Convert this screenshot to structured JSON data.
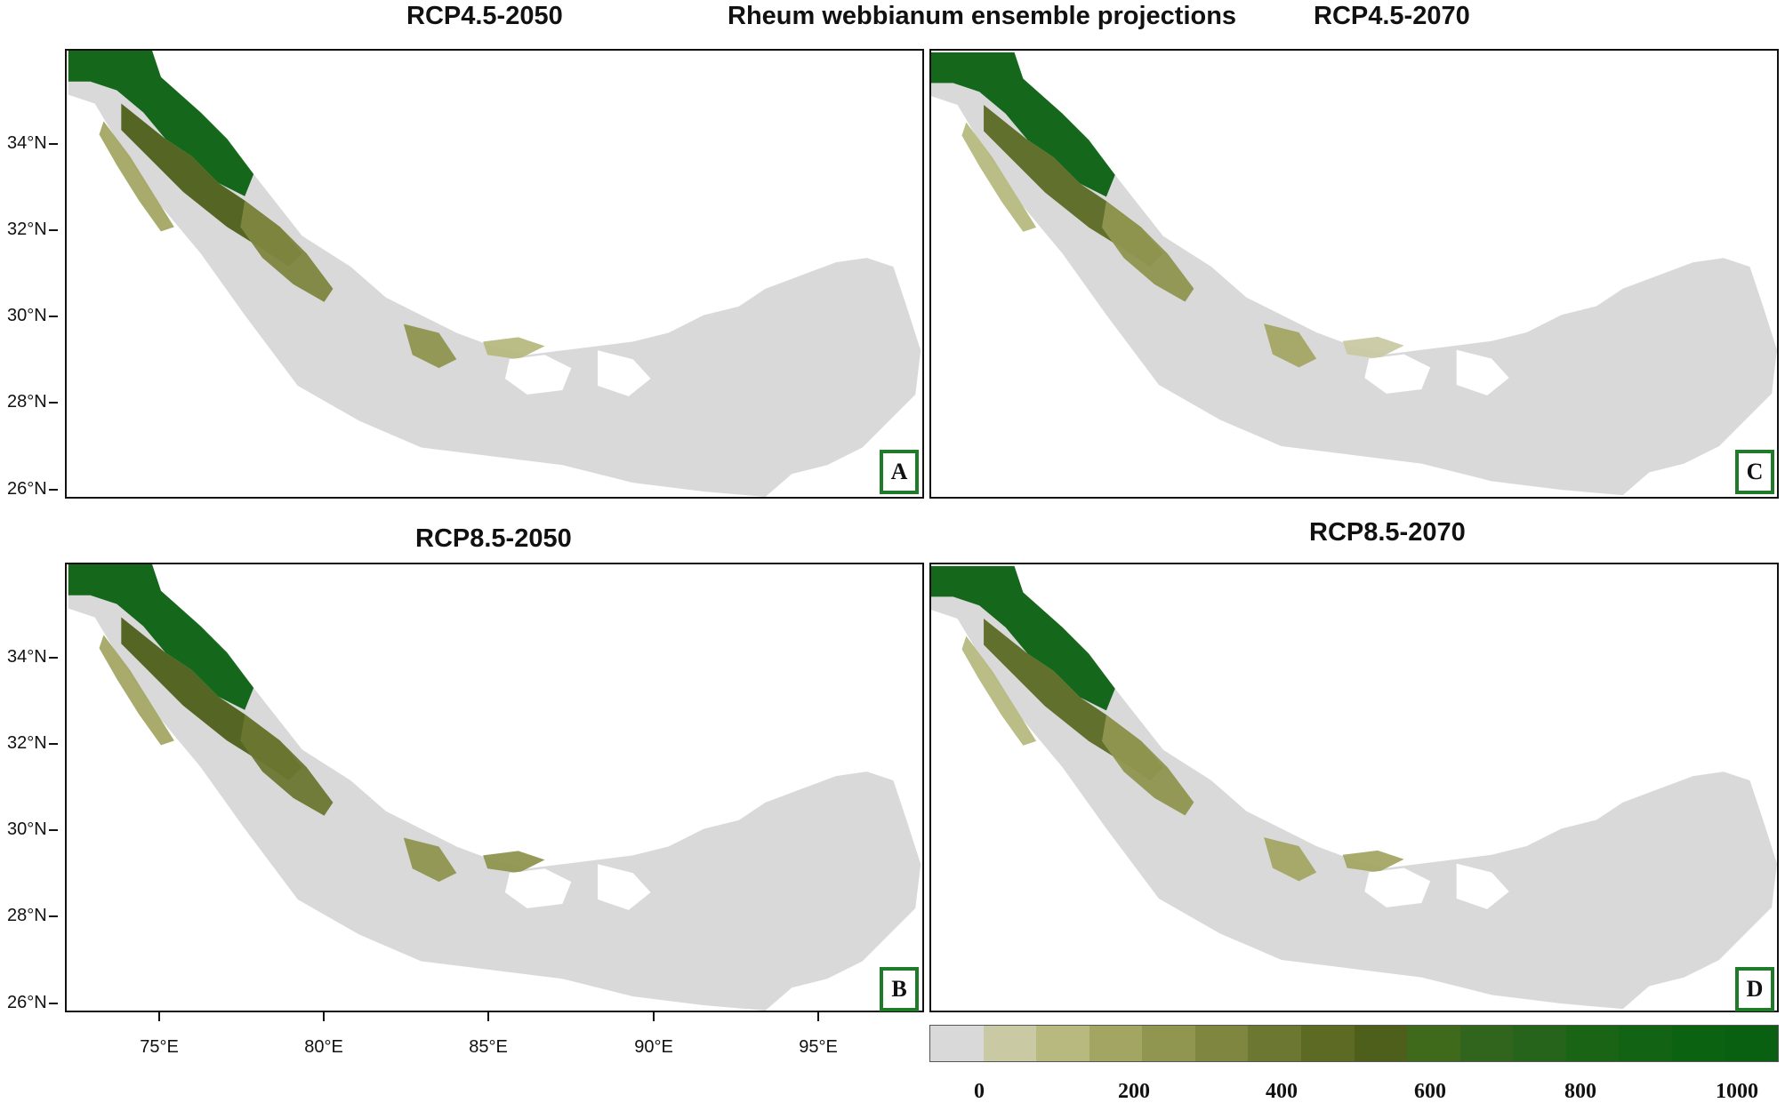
{
  "titles": {
    "main": "Rheum webbianum ensemble projections",
    "p_a": "RCP4.5-2050",
    "p_c": "RCP4.5-2070",
    "p_b": "RCP8.5-2050",
    "p_d": "RCP8.5-2070"
  },
  "panels": {
    "a_label": "A",
    "b_label": "B",
    "c_label": "C",
    "d_label": "D"
  },
  "lat_labels": [
    "34°N",
    "32°N",
    "30°N",
    "28°N",
    "26°N"
  ],
  "lon_labels": [
    "75°E",
    "80°E",
    "85°E",
    "90°E",
    "95°E"
  ],
  "scale": {
    "labels": [
      "0",
      "200",
      "400",
      "600",
      "800",
      "1000"
    ],
    "colors": [
      "#d9d9d9",
      "#c9c9a4",
      "#b7b97f",
      "#a3a663",
      "#909550",
      "#7e8640",
      "#6c7732",
      "#5c6a24",
      "#4d5f1a",
      "#3f6a1c",
      "#31641c",
      "#25641a",
      "#1a6416",
      "#126313",
      "#0b6211",
      "#086010"
    ]
  },
  "colors": {
    "badge_border": "#1f7a2a",
    "land": "#d9d9d9",
    "high_suitability": "#0b6211"
  }
}
